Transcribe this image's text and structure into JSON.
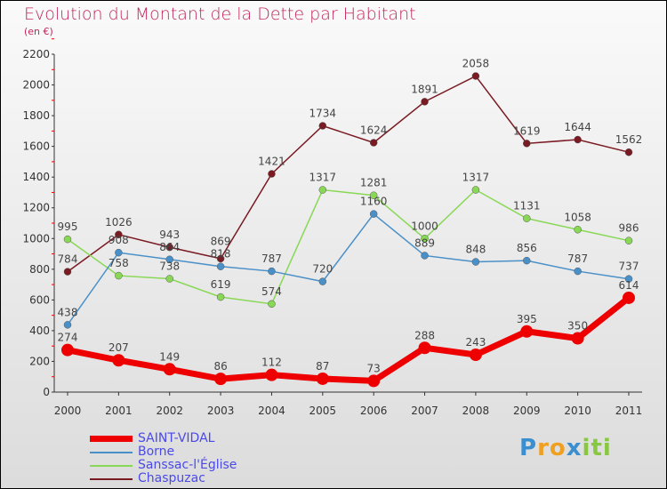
{
  "chart_data": {
    "type": "line",
    "title": "Evolution du Montant de la Dette par Habitant",
    "subtitle": "(en €)",
    "xlabel": "",
    "ylabel": "",
    "x": [
      "2000",
      "2001",
      "2002",
      "2003",
      "2004",
      "2005",
      "2006",
      "2007",
      "2008",
      "2009",
      "2010",
      "2011"
    ],
    "ylim": [
      0,
      2200
    ],
    "yticks": [
      0,
      200,
      400,
      600,
      800,
      1000,
      1200,
      1400,
      1600,
      1800,
      2000,
      2200
    ],
    "legend_position": "bottom-left",
    "series": [
      {
        "name": "Chaspuzac",
        "color": "#7a1a22",
        "values": [
          784,
          1026,
          943,
          869,
          1421,
          1734,
          1624,
          1891,
          2058,
          1619,
          1644,
          1562
        ]
      },
      {
        "name": "Sanssac-l'Église",
        "color": "#88d855",
        "values": [
          995,
          758,
          738,
          619,
          574,
          1317,
          1281,
          1000,
          1317,
          1131,
          1058,
          986
        ]
      },
      {
        "name": "Borne",
        "color": "#4a90c8",
        "values": [
          438,
          908,
          864,
          818,
          787,
          720,
          1160,
          889,
          848,
          856,
          787,
          737
        ]
      },
      {
        "name": "SAINT-VIDAL",
        "color": "#ee0000",
        "values": [
          274,
          207,
          149,
          86,
          112,
          87,
          73,
          288,
          243,
          395,
          350,
          614
        ]
      }
    ]
  },
  "legend": [
    "SAINT-VIDAL",
    "Borne",
    "Sanssac-l'Église",
    "Chaspuzac"
  ],
  "logo": "Proxiti"
}
